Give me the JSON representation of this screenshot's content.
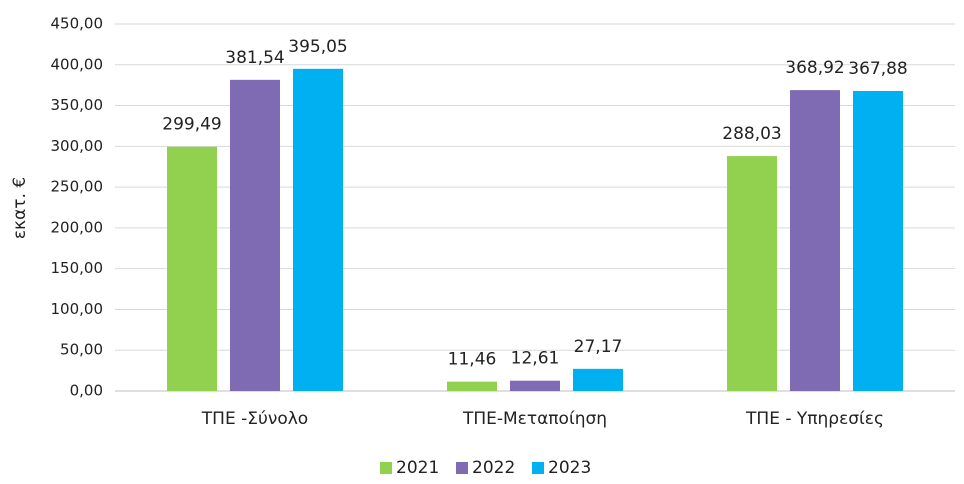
{
  "chart_data": {
    "type": "bar",
    "y_label": "εκατ. €",
    "categories": [
      "ΤΠΕ -Σύνολο",
      "ΤΠΕ-Μεταποίηση",
      "ΤΠΕ - Υπηρεσίες"
    ],
    "series": [
      {
        "name": "2021",
        "color": "#92d050",
        "values": [
          299.49,
          11.46,
          288.03
        ],
        "value_labels": [
          "299,49",
          "11,46",
          "288,03"
        ]
      },
      {
        "name": "2022",
        "color": "#7f6bb3",
        "values": [
          381.54,
          12.61,
          368.92
        ],
        "value_labels": [
          "381,54",
          "12,61",
          "368,92"
        ]
      },
      {
        "name": "2023",
        "color": "#00b0f0",
        "values": [
          395.05,
          27.17,
          367.88
        ],
        "value_labels": [
          "395,05",
          "27,17",
          "367,88"
        ]
      }
    ],
    "ylim": [
      0,
      450
    ],
    "yticks": [
      {
        "value": 0,
        "label": "0,00"
      },
      {
        "value": 50,
        "label": "50,00"
      },
      {
        "value": 100,
        "label": "100,00"
      },
      {
        "value": 150,
        "label": "150,00"
      },
      {
        "value": 200,
        "label": "200,00"
      },
      {
        "value": 250,
        "label": "250,00"
      },
      {
        "value": 300,
        "label": "300,00"
      },
      {
        "value": 350,
        "label": "350,00"
      },
      {
        "value": 400,
        "label": "400,00"
      },
      {
        "value": 450,
        "label": "450,00"
      }
    ],
    "grid": true,
    "legend": "bottom"
  }
}
